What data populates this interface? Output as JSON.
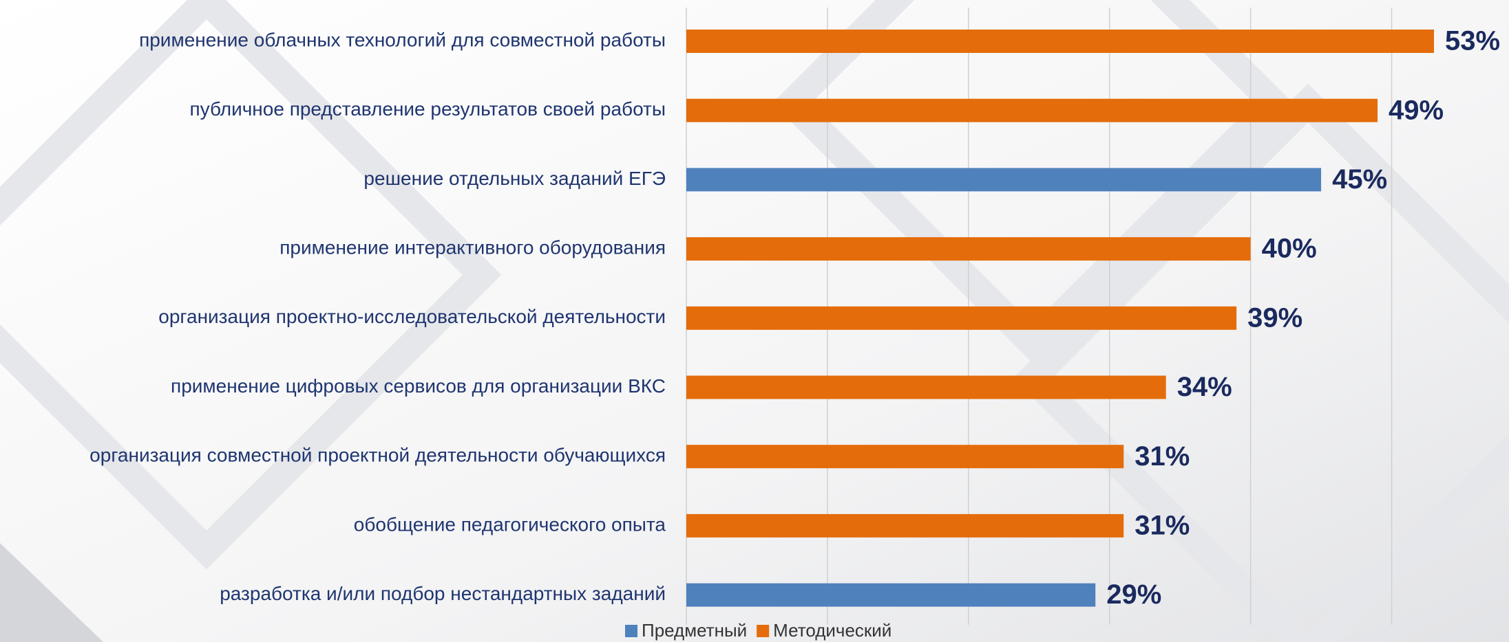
{
  "chart_data": {
    "type": "barh",
    "categories": [
      "применение облачных технологий для совместной работы",
      "публичное представление результатов своей работы",
      "решение отдельных заданий ЕГЭ",
      "применение интерактивного оборудования",
      "организация проектно-исследовательской деятельности",
      "применение цифровых сервисов для организации ВКС",
      "организация совместной проектной деятельности обучающихся",
      "обобщение педагогического опыта",
      "разработка и/или подбор нестандартных заданий"
    ],
    "series": [
      {
        "name": "Предметный",
        "color": "#4f81bd",
        "values": [
          null,
          null,
          45,
          null,
          null,
          null,
          null,
          null,
          29
        ],
        "value_labels": [
          null,
          null,
          "45%",
          null,
          null,
          null,
          null,
          null,
          "29%"
        ]
      },
      {
        "name": "Методический",
        "color": "#e46c0a",
        "values": [
          53,
          49,
          null,
          40,
          39,
          34,
          31,
          31,
          null
        ],
        "value_labels": [
          "53%",
          "49%",
          null,
          "40%",
          "39%",
          "34%",
          "31%",
          "31%",
          null
        ]
      }
    ],
    "xlim": [
      0,
      55
    ],
    "xticks": [
      0,
      10,
      20,
      30,
      40,
      50
    ],
    "grid": true,
    "legend": "bottom"
  }
}
